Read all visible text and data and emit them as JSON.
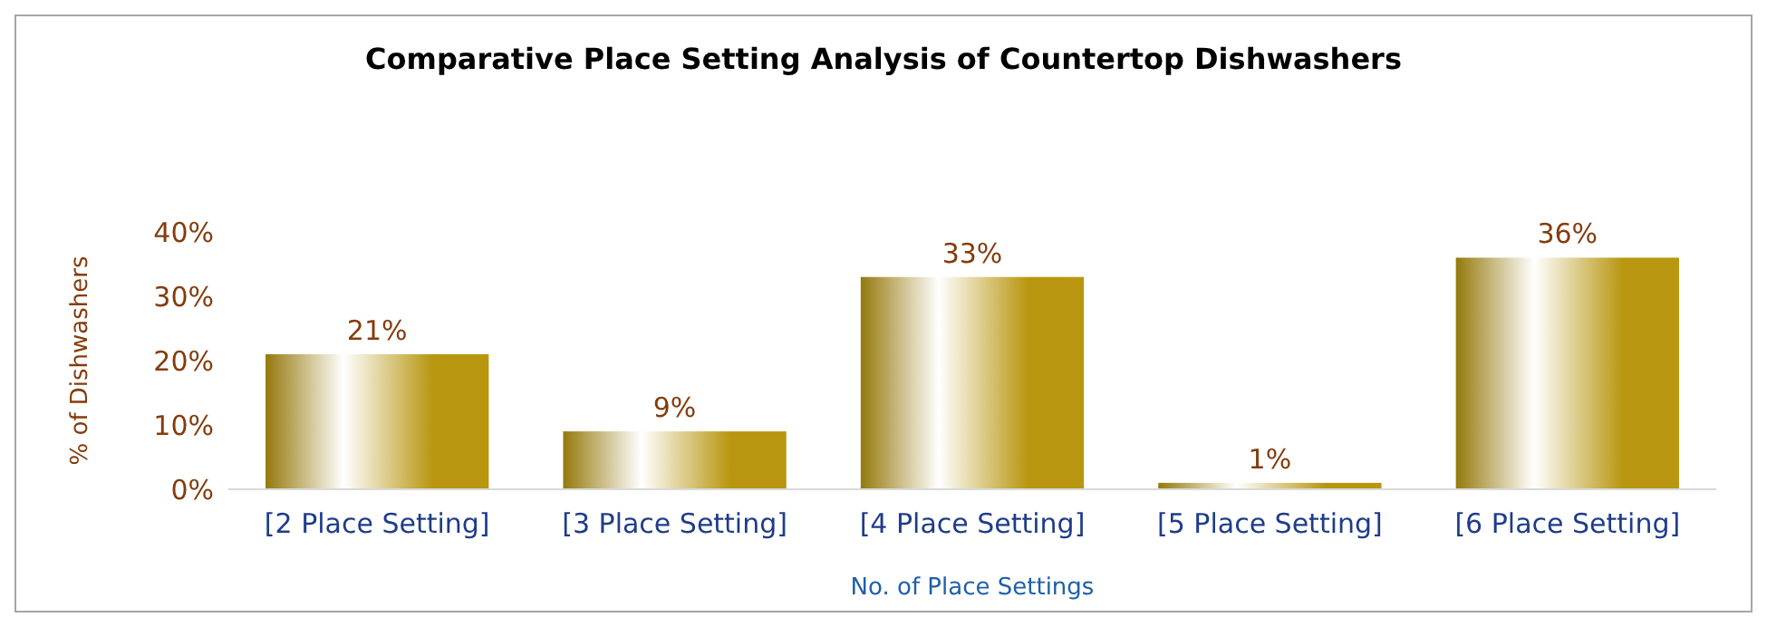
{
  "chart_data": {
    "type": "bar",
    "title": "Comparative Place Setting Analysis of Countertop Dishwashers",
    "xlabel": "No. of Place Settings",
    "ylabel": "% of Dishwashers",
    "categories": [
      "[2 Place Setting]",
      "[3 Place Setting]",
      "[4 Place Setting]",
      "[5 Place Setting]",
      "[6 Place Setting]"
    ],
    "values": [
      21,
      9,
      33,
      1,
      36
    ],
    "value_labels": [
      "21%",
      "9%",
      "33%",
      "1%",
      "36%"
    ],
    "color": "#b8960f",
    "ylim": [
      0,
      40
    ],
    "yticks": [
      {
        "value": 0,
        "label": "0%"
      },
      {
        "value": 10,
        "label": "10%"
      },
      {
        "value": 20,
        "label": "20%"
      },
      {
        "value": 30,
        "label": "30%"
      },
      {
        "value": 40,
        "label": "40%"
      }
    ],
    "grid": false
  }
}
